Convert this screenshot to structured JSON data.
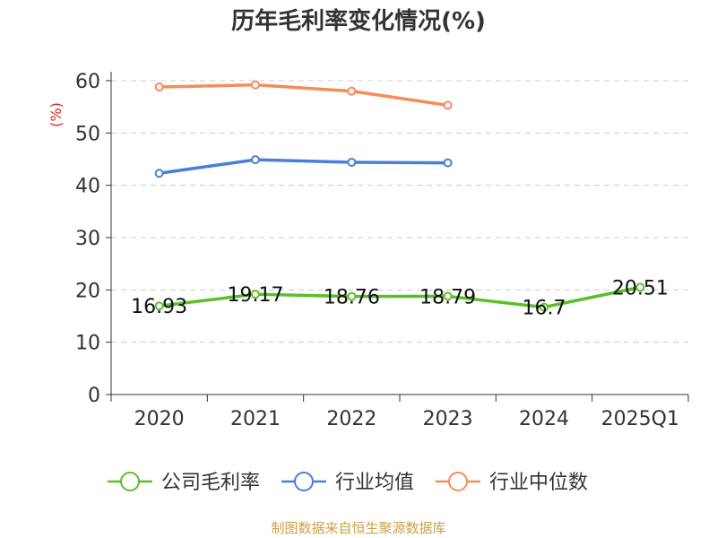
{
  "chart_data": {
    "type": "line",
    "title": "历年毛利率变化情况(%)",
    "unit_label": "(%)",
    "categories": [
      "2020",
      "2021",
      "2022",
      "2023",
      "2024",
      "2025Q1"
    ],
    "ylim": [
      0,
      60
    ],
    "yticks": [
      0,
      10,
      20,
      30,
      40,
      50,
      60
    ],
    "grid": true,
    "legend_position": "bottom",
    "series": [
      {
        "name": "公司毛利率",
        "color": "#5cbf2a",
        "values": [
          16.93,
          19.17,
          18.76,
          18.79,
          16.7,
          20.51
        ],
        "labels": [
          "16.93",
          "19.17",
          "18.76",
          "18.79",
          "16.7",
          "20.51"
        ]
      },
      {
        "name": "行业均值",
        "color": "#4a7fd8",
        "values": [
          42.3,
          44.9,
          44.4,
          44.3,
          null,
          null
        ]
      },
      {
        "name": "行业中位数",
        "color": "#f58c5a",
        "values": [
          58.8,
          59.2,
          58.0,
          55.3,
          null,
          null
        ]
      }
    ],
    "source": "制图数据来自恒生聚源数据库",
    "colors": {
      "unit": "#e02020",
      "source": "#c9a24a",
      "axis": "#333333",
      "grid": "#cccccc"
    }
  }
}
